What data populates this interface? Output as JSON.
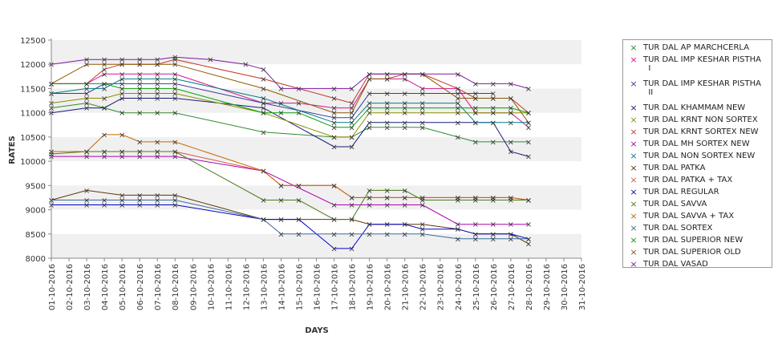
{
  "chart_data": {
    "type": "line",
    "title": "",
    "xlabel": "DAYS",
    "ylabel": "RATES",
    "ylim": [
      8000,
      12500
    ],
    "yticks": [
      8000,
      8500,
      9000,
      9500,
      10000,
      10500,
      11000,
      11500,
      12000,
      12500
    ],
    "grid": "alternating horizontal bands",
    "legend_position": "right",
    "categories": [
      "01-10-2016",
      "02-10-2016",
      "03-10-2016",
      "04-10-2016",
      "05-10-2016",
      "06-10-2016",
      "07-10-2016",
      "08-10-2016",
      "09-10-2016",
      "10-10-2016",
      "11-10-2016",
      "12-10-2016",
      "13-10-2016",
      "14-10-2016",
      "15-10-2016",
      "16-10-2016",
      "17-10-2016",
      "18-10-2016",
      "19-10-2016",
      "20-10-2016",
      "21-10-2016",
      "22-10-2016",
      "23-10-2016",
      "24-10-2016",
      "25-10-2016",
      "26-10-2016",
      "27-10-2016",
      "28-10-2016",
      "29-10-2016",
      "30-10-2016",
      "31-10-2016"
    ],
    "series": [
      {
        "name": "TUR DAL AP MARCHCERLA",
        "color": "#2e8b2e",
        "values": [
          11100,
          null,
          11200,
          11100,
          11000,
          11000,
          11000,
          11000,
          null,
          null,
          null,
          null,
          10600,
          null,
          null,
          null,
          10500,
          10500,
          10700,
          10700,
          10700,
          10700,
          null,
          10500,
          10400,
          10400,
          10400,
          10400,
          null,
          null,
          null
        ]
      },
      {
        "name": "TUR DAL IMP KESHAR PISTHA\n  I",
        "color": "#d4148c",
        "values": [
          11600,
          null,
          11600,
          11800,
          11800,
          11800,
          11800,
          11800,
          null,
          null,
          null,
          null,
          11200,
          11200,
          11200,
          null,
          11100,
          11100,
          11700,
          11700,
          11700,
          11500,
          null,
          11500,
          11000,
          11000,
          11000,
          10700,
          null,
          null,
          null
        ]
      },
      {
        "name": "TUR DAL IMP KESHAR PISTHA\n  II",
        "color": "#3a3a9e",
        "values": [
          11400,
          null,
          11400,
          11600,
          11600,
          11600,
          11600,
          11600,
          null,
          null,
          null,
          null,
          11200,
          null,
          null,
          null,
          10900,
          10900,
          11400,
          11400,
          11400,
          11400,
          null,
          11400,
          11400,
          11400,
          null,
          null,
          null,
          null,
          null
        ]
      },
      {
        "name": "TUR DAL KHAMMAM NEW",
        "color": "#1a1a7a",
        "values": [
          11000,
          null,
          11100,
          11100,
          11300,
          11300,
          11300,
          11300,
          null,
          null,
          null,
          null,
          11100,
          null,
          null,
          null,
          10300,
          10300,
          10800,
          10800,
          10800,
          10800,
          null,
          10800,
          10800,
          10800,
          10200,
          10100,
          null,
          null,
          null
        ]
      },
      {
        "name": "TUR DAL KRNT NON SORTEX",
        "color": "#8c8c00",
        "values": [
          11200,
          null,
          11300,
          11300,
          11400,
          11400,
          11400,
          11400,
          null,
          null,
          null,
          null,
          11000,
          null,
          null,
          null,
          10500,
          10500,
          11000,
          11000,
          11000,
          11000,
          null,
          11000,
          11000,
          11000,
          11000,
          11000,
          null,
          null,
          null
        ]
      },
      {
        "name": "TUR DAL KRNT SORTEX NEW",
        "color": "#c0392b",
        "values": [
          11600,
          null,
          11600,
          11900,
          12000,
          12000,
          12000,
          12100,
          null,
          null,
          null,
          null,
          11700,
          null,
          null,
          null,
          11300,
          11200,
          11800,
          11800,
          11800,
          11800,
          null,
          11500,
          11300,
          11300,
          11300,
          11000,
          null,
          null,
          null
        ]
      },
      {
        "name": "TUR DAL MH SORTEX NEW",
        "color": "#b000b0",
        "values": [
          10100,
          null,
          10100,
          10100,
          10100,
          10100,
          10100,
          10100,
          null,
          null,
          null,
          null,
          9800,
          null,
          null,
          null,
          9100,
          9100,
          9100,
          9100,
          9100,
          9100,
          null,
          8700,
          8700,
          8700,
          8700,
          8700,
          null,
          null,
          null
        ]
      },
      {
        "name": "TUR DAL NON SORTEX NEW",
        "color": "#007a8c",
        "values": [
          11400,
          null,
          11500,
          11500,
          11700,
          11700,
          11700,
          11700,
          null,
          null,
          null,
          null,
          11300,
          null,
          null,
          null,
          10800,
          10800,
          11200,
          11200,
          11200,
          11200,
          null,
          11200,
          10800,
          10800,
          10800,
          10800,
          null,
          null,
          null
        ]
      },
      {
        "name": "TUR DAL PATKA",
        "color": "#5a3a00",
        "values": [
          9200,
          null,
          9400,
          null,
          9300,
          9300,
          9300,
          9300,
          null,
          null,
          null,
          null,
          8800,
          8800,
          8800,
          null,
          8800,
          8800,
          8700,
          8700,
          8700,
          8700,
          null,
          8600,
          8500,
          8500,
          8500,
          8300,
          null,
          null,
          null
        ]
      },
      {
        "name": "TUR DAL PATKA + TAX",
        "color": "#d9534f",
        "values": [
          10200,
          null,
          10200,
          10200,
          10200,
          10200,
          10200,
          10200,
          null,
          null,
          null,
          null,
          9800,
          9500,
          9500,
          null,
          9500,
          9250,
          9250,
          9250,
          9250,
          9250,
          null,
          9250,
          9250,
          9250,
          9250,
          9200,
          null,
          null,
          null
        ]
      },
      {
        "name": "TUR DAL REGULAR",
        "color": "#0000cc",
        "values": [
          9100,
          null,
          9100,
          9100,
          9100,
          9100,
          9100,
          9100,
          null,
          null,
          null,
          null,
          8800,
          8800,
          8800,
          null,
          8200,
          8200,
          8700,
          8700,
          8700,
          8600,
          null,
          8600,
          8500,
          8500,
          8500,
          8400,
          null,
          null,
          null
        ]
      },
      {
        "name": "TUR DAL SAVVA",
        "color": "#4a7a1a",
        "values": [
          10150,
          null,
          10200,
          10200,
          10200,
          10200,
          10200,
          10200,
          null,
          null,
          null,
          null,
          9200,
          9200,
          9200,
          null,
          8800,
          8800,
          9400,
          9400,
          9400,
          9200,
          null,
          9200,
          9200,
          9200,
          9200,
          9200,
          null,
          null,
          null
        ]
      },
      {
        "name": "TUR DAL SAVVA + TAX",
        "color": "#c86400",
        "values": [
          10200,
          null,
          10200,
          10550,
          10550,
          10400,
          10400,
          10400,
          null,
          null,
          null,
          null,
          9800,
          9500,
          9500,
          null,
          9500,
          9250,
          9250,
          9250,
          9250,
          9250,
          null,
          9250,
          9250,
          9250,
          9250,
          9200,
          null,
          null,
          null
        ]
      },
      {
        "name": "TUR DAL SORTEX",
        "color": "#3a6a9e",
        "values": [
          9200,
          null,
          9200,
          9200,
          9200,
          9200,
          9200,
          9200,
          null,
          null,
          null,
          null,
          8800,
          8500,
          8500,
          null,
          8500,
          8500,
          8500,
          8500,
          8500,
          8500,
          null,
          8400,
          8400,
          8400,
          8400,
          8400,
          null,
          null,
          null
        ]
      },
      {
        "name": "TUR DAL SUPERIOR NEW",
        "color": "#00a000",
        "values": [
          11600,
          null,
          11600,
          11600,
          11500,
          11500,
          11500,
          11500,
          null,
          null,
          null,
          null,
          11000,
          11000,
          11000,
          null,
          10700,
          10700,
          11100,
          11100,
          11100,
          11100,
          null,
          11100,
          11100,
          11100,
          11100,
          11000,
          null,
          null,
          null
        ]
      },
      {
        "name": "TUR DAL SUPERIOR OLD",
        "color": "#8b5a00",
        "values": [
          11600,
          null,
          12000,
          12000,
          12000,
          12000,
          12000,
          12000,
          null,
          null,
          null,
          null,
          11500,
          null,
          null,
          null,
          11000,
          11000,
          11700,
          11700,
          11800,
          11800,
          null,
          11300,
          11300,
          11300,
          11300,
          10800,
          null,
          null,
          null
        ]
      },
      {
        "name": "TUR DAL VASAD",
        "color": "#7a1a9e",
        "values": [
          12000,
          null,
          12100,
          12100,
          12100,
          12100,
          12100,
          12150,
          null,
          12100,
          null,
          12000,
          11900,
          11500,
          11500,
          null,
          11500,
          11500,
          11800,
          11800,
          11800,
          11800,
          null,
          11800,
          11600,
          11600,
          11600,
          11500,
          null,
          null,
          null
        ]
      }
    ]
  }
}
